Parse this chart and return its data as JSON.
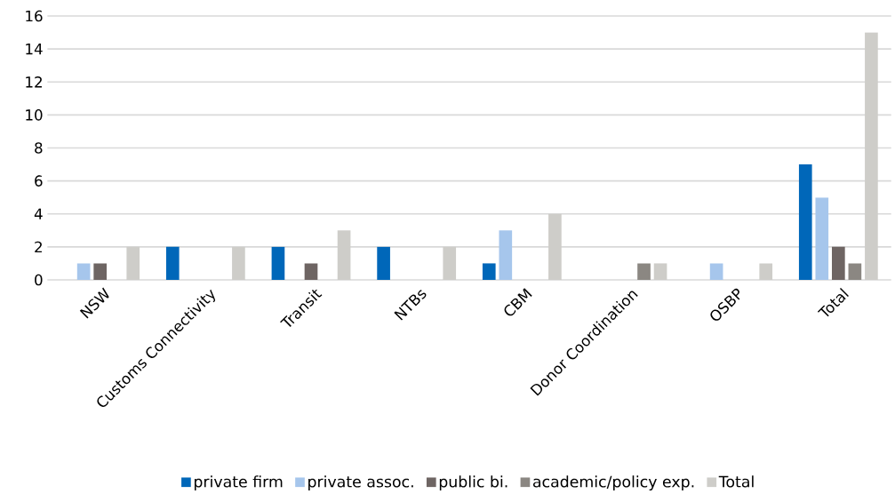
{
  "chart_data": {
    "type": "bar",
    "categories": [
      "NSW",
      "Customs Connectivity",
      "Transit",
      "NTBs",
      "CBM",
      "Donor Coordination",
      "OSBP",
      "Total"
    ],
    "series": [
      {
        "name": "private firm",
        "color": "#0067b9",
        "values": [
          0,
          2,
          2,
          2,
          1,
          0,
          0,
          7
        ]
      },
      {
        "name": "private assoc.",
        "color": "#a6c6ec",
        "values": [
          1,
          0,
          0,
          0,
          3,
          0,
          1,
          5
        ]
      },
      {
        "name": "public bi.",
        "color": "#6e6563",
        "values": [
          1,
          0,
          1,
          0,
          0,
          0,
          0,
          2
        ]
      },
      {
        "name": "academic/policy exp.",
        "color": "#8b8782",
        "values": [
          0,
          0,
          0,
          0,
          0,
          1,
          0,
          1
        ]
      },
      {
        "name": "Total",
        "color": "#cecdc9",
        "values": [
          2,
          2,
          3,
          2,
          4,
          1,
          1,
          15
        ]
      }
    ],
    "ylim": [
      0,
      16
    ],
    "yticks": [
      0,
      2,
      4,
      6,
      8,
      10,
      12,
      14,
      16
    ],
    "grid": "y",
    "legend": "bottom"
  }
}
